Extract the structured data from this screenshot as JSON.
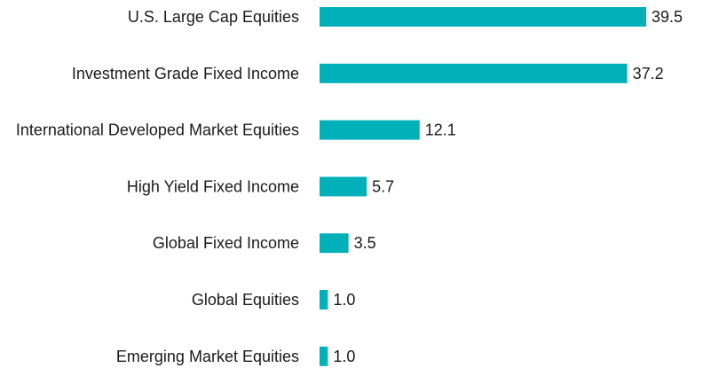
{
  "chart_data": {
    "type": "bar",
    "orientation": "horizontal",
    "categories": [
      "U.S. Large Cap Equities",
      "Investment Grade Fixed Income",
      "International Developed Market Equities",
      "High Yield Fixed Income",
      "Global Fixed Income",
      "Global Equities",
      "Emerging Market Equities"
    ],
    "values": [
      39.5,
      37.2,
      12.1,
      5.7,
      3.5,
      1.0,
      1.0
    ],
    "value_labels": [
      "39.5",
      "37.2",
      "12.1",
      "5.7",
      "3.5",
      "1.0",
      "1.0"
    ],
    "bar_color": "#00b0b9",
    "grid": false,
    "legend": "none",
    "xlim": [
      0,
      39.5
    ]
  }
}
